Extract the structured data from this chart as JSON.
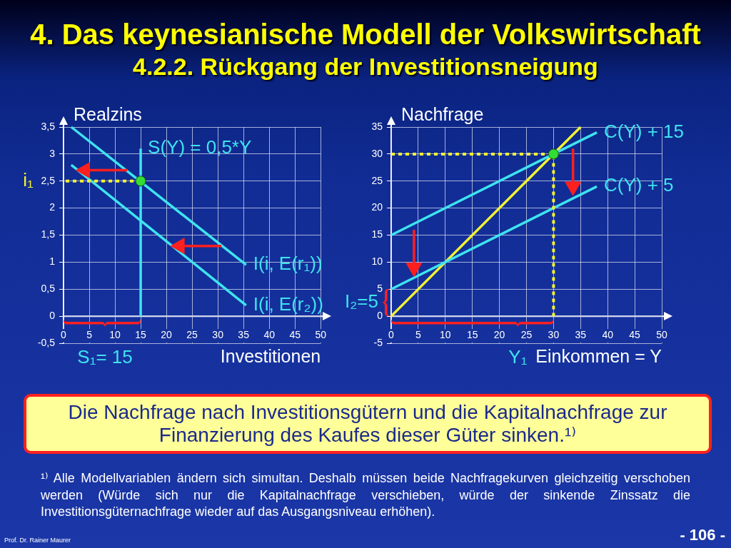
{
  "chart_data": [
    {
      "type": "line",
      "title": "4. Das keynesianische Modell der Volkswirtschaft",
      "subtitle": "4.2.2. Rückgang der Investitionsneigung",
      "xlabel": "Investitionen",
      "ylabel": "Realzins",
      "xlim": [
        0,
        50
      ],
      "xticks": [
        0,
        5,
        10,
        15,
        20,
        25,
        30,
        35,
        40,
        45,
        50
      ],
      "ylim": [
        -0.5,
        3.5
      ],
      "yticks": [
        {
          "value": -0.5,
          "label": "-0,5"
        },
        0,
        {
          "value": 0.5,
          "label": "0,5"
        },
        1,
        {
          "value": 1.5,
          "label": "1,5"
        },
        2,
        {
          "value": 2.5,
          "label": "2,5"
        },
        3,
        {
          "value": 3.5,
          "label": "3,5"
        }
      ],
      "grid": true,
      "series": [
        {
          "name": "I(i, E(r₁))",
          "type": "line",
          "color": "#3fe3f0",
          "x": [
            1.5,
            35.5
          ],
          "values": [
            3.5,
            0.95
          ]
        },
        {
          "name": "I(i, E(r₂))",
          "type": "line",
          "color": "#3fe3f0",
          "x": [
            1.5,
            35.5
          ],
          "values": [
            2.8,
            0.2
          ]
        },
        {
          "name": "S(Y) = 0,5*Y",
          "type": "line",
          "color": "#3fe3f0",
          "x": [
            15,
            15
          ],
          "values": [
            0,
            3.1
          ]
        },
        {
          "name": "i₁",
          "type": "line",
          "color": "#f2f230",
          "line_style": "dotted",
          "x": [
            15,
            0
          ],
          "values": [
            2.5,
            2.5
          ]
        },
        {
          "type": "scatter",
          "color": "#33dd33",
          "marker": "circle",
          "x": [
            15
          ],
          "values": [
            2.5
          ]
        },
        {
          "type": "line",
          "color": "#ff1f1f",
          "marker": "triangle",
          "x": [
            12.4,
            4.2
          ],
          "values": [
            2.7,
            2.7
          ]
        },
        {
          "type": "line",
          "color": "#ff1f1f",
          "marker": "triangle",
          "x": [
            30.7,
            22.6
          ],
          "values": [
            1.3,
            1.3
          ]
        }
      ],
      "annotations": [
        {
          "text": "S₁= 15",
          "x": 15,
          "y": 0
        },
        "Die Nachfrage nach Investitionsgütern und die Kapitalnachfrage zur Finanzierung des Kaufes dieser Güter sinken.¹⁾",
        "¹⁾ Alle Modellvariablen ändern sich simultan. Deshalb müssen beide Nachfragekurven gleichzeitig verschoben werden (Würde sich nur die Kapitalnachfrage verschieben, würde der sinkende Zinssatz die Investitionsgüternachfrage wieder auf das Ausgangsniveau erhöhen).",
        "Prof. Dr. Rainer Maurer",
        "- 106 -"
      ]
    },
    {
      "type": "line",
      "xlabel": "Einkommen = Y",
      "ylabel": "Nachfrage",
      "xlim": [
        0,
        50
      ],
      "xticks": [
        0,
        5,
        10,
        15,
        20,
        25,
        30,
        35,
        40,
        45,
        50
      ],
      "ylim": [
        -5,
        35
      ],
      "yticks": [
        -5,
        0,
        5,
        10,
        15,
        20,
        25,
        30,
        35
      ],
      "grid": true,
      "series": [
        {
          "type": "line",
          "color": "#f2f230",
          "x": [
            0,
            35
          ],
          "values": [
            0,
            35
          ]
        },
        {
          "name": "C(Y) + 15",
          "type": "line",
          "color": "#3fe3f0",
          "x": [
            0,
            38
          ],
          "values": [
            15,
            34
          ]
        },
        {
          "name": "C(Y) + 5",
          "type": "line",
          "color": "#3fe3f0",
          "x": [
            0,
            38
          ],
          "values": [
            5,
            24
          ]
        },
        {
          "type": "line",
          "color": "#f2f230",
          "line_style": "dotted",
          "x": [
            0,
            30,
            30
          ],
          "values": [
            30,
            30,
            0
          ]
        },
        {
          "type": "scatter",
          "color": "#33dd33",
          "marker": "circle",
          "x": [
            30
          ],
          "values": [
            30
          ]
        },
        {
          "type": "line",
          "color": "#ff1f1f",
          "marker": "triangle",
          "x": [
            4.2,
            4.2
          ],
          "values": [
            15.8,
            9
          ]
        },
        {
          "type": "line",
          "color": "#ff1f1f",
          "marker": "triangle",
          "x": [
            33.6,
            33.6
          ],
          "values": [
            30.8,
            24
          ]
        }
      ],
      "annotations": [
        {
          "text": "Y₁",
          "x": 30,
          "y": 0
        },
        {
          "text": "I₂=5",
          "x": 0,
          "y": 5
        }
      ]
    }
  ]
}
